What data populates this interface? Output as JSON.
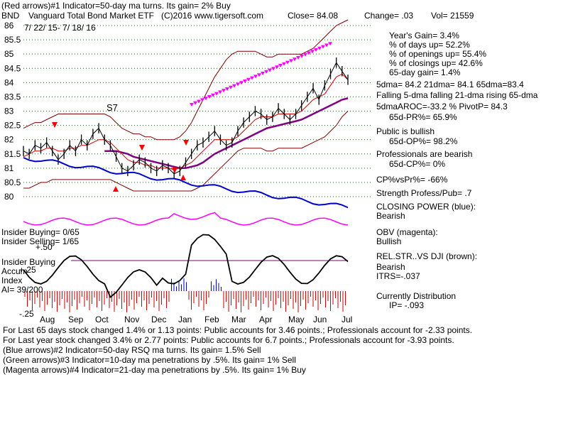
{
  "header": {
    "line1": "(Red arrows)#1 Indicator=50-day ma turns. Its gain= 2% Buy",
    "symbol": "BND",
    "fund": "Vanguard Total Bond Market ETF",
    "copyright": "(C)2016 www.tigersoft.com",
    "close": "Close=  84.08",
    "change": "Change= .03",
    "volume": "Vol= 21559",
    "date_range": "7/ 22/ 15- 7/ 18/ 16"
  },
  "stats": {
    "years_gain": "Year's Gain= 3.4%",
    "pct_days_up": "% of days up= 52.2%",
    "pct_openings_up": "% of openings up= 55.4%",
    "pct_closings_up": "% of closings up= 42.6%",
    "gain_65d": "65-day gain= 1.4%",
    "dma": "5dma= 84.2 21dma= 84.1 65dma=83.4",
    "dma_trend": "Falling 5-dma falling 21-dma rising 65-dma",
    "aroc": "5dmaAROC=-33.2 %  PivotP= 84.3",
    "pr65": "65d-PR%= 65.9%",
    "public": "Public is bullish",
    "op65": "65d-OP%= 98.2%",
    "pros": "Professionals are bearish",
    "cp65": "65d-CP%= 0%",
    "cp_vs_pr": "CP%vsPr%= -66%",
    "strength": "Strength Profess/Pub= .7",
    "closing_power": "CLOSING POWER (blue):",
    "closing_power_val": "Bearish",
    "obv": "OBV (magenta):",
    "obv_val": "Bullish",
    "relstr": "REL.STR..VS DJI (brown):",
    "relstr_val": "Bearish",
    "itrs": "ITRS=-.037",
    "distribution": "Currently Distribution",
    "ip": "IP= -.093"
  },
  "insider": {
    "buying": "Insider Buying= 0/65",
    "selling": "Insider Selling= 1/65",
    "index1": "Insider Buying",
    "index2": "Accum",
    "index3": "Index",
    "ai": "AI= 39/200"
  },
  "footer": {
    "line1": "For Last 65 days stock changed  1.4% or  1.13 points:  Public accounts for  3.46 points.;  Professionals account for -2.33 points.",
    "line2": "For Last year stock changed  3.4% or  2.77 points:  Public accounts for  6.7 points.;  Professionals account for -3.93 points.",
    "line3": "(Blue arrows)#2 Indicator=50-day RSQ ma turns. Its gain= 1.5% Sell",
    "line4": "(Green arrows)#3 Indicator=10-day ma penetrations by .5%. Its gain= 1% Sell",
    "line5": "(Magenta arrows)#4 Indicator=21-day ma penetrations by .5%. Its gain= 1% Buy"
  },
  "colors": {
    "price": "#000000",
    "ma21": "#cc0000",
    "ma65": "#800080",
    "band": "#800000",
    "closing_power": "#0000cc",
    "obv": "#ff00ff",
    "accum_red": "#cc0000",
    "accum_blue": "#0000cc",
    "grid": "#008000"
  },
  "chart_data": {
    "type": "line",
    "price_axis": {
      "ticks": [
        "86",
        "85.5",
        "85",
        "84.5",
        "84",
        "83.5",
        "83",
        "82.5",
        "82",
        "81.5",
        "81",
        "80.5",
        "80"
      ],
      "ylim": [
        80,
        86
      ]
    },
    "indicator_axis": {
      "ticks": [
        "+.50",
        "+.25",
        "-.25"
      ]
    },
    "x_ticks": [
      "Aug",
      "Sep",
      "Oct",
      "Nov",
      "Dec",
      "Jan",
      "Feb",
      "Mar",
      "Apr",
      "May",
      "Jun",
      "Jul"
    ],
    "annotation": "S7",
    "series": [
      {
        "name": "CLOSING POWER (blue)"
      },
      {
        "name": "OBV (magenta)"
      },
      {
        "name": "REL.STR..VS DJI (brown)"
      }
    ],
    "price_close": [
      81.6,
      81.5,
      81.8,
      81.7,
      81.9,
      81.6,
      81.3,
      81.5,
      81.8,
      81.6,
      82.0,
      81.8,
      82.2,
      82.4,
      82.0,
      81.8,
      81.4,
      81.0,
      80.9,
      81.1,
      81.3,
      81.2,
      81.0,
      80.9,
      81.1,
      81.0,
      80.8,
      80.9,
      81.2,
      81.5,
      81.8,
      81.9,
      82.1,
      82.3,
      82.0,
      81.8,
      81.9,
      82.3,
      82.6,
      82.8,
      83.0,
      82.9,
      82.7,
      82.8,
      83.1,
      82.9,
      82.7,
      82.9,
      83.2,
      83.5,
      83.8,
      83.4,
      83.9,
      84.3,
      84.7,
      84.4,
      84.1
    ],
    "ma21": [
      81.4,
      81.5,
      81.6,
      81.6,
      81.7,
      81.7,
      81.6,
      81.6,
      81.7,
      81.7,
      81.8,
      81.8,
      81.9,
      82.0,
      82.0,
      81.9,
      81.7,
      81.5,
      81.3,
      81.2,
      81.2,
      81.1,
      81.1,
      81.0,
      81.0,
      81.0,
      80.95,
      81.0,
      81.1,
      81.2,
      81.4,
      81.6,
      81.8,
      82.0,
      82.0,
      82.0,
      82.0,
      82.1,
      82.3,
      82.5,
      82.7,
      82.8,
      82.8,
      82.8,
      82.9,
      82.9,
      82.9,
      82.9,
      83.0,
      83.2,
      83.4,
      83.5,
      83.6,
      83.9,
      84.2,
      84.3,
      84.1
    ],
    "ma65": [
      null,
      null,
      null,
      null,
      null,
      null,
      null,
      null,
      null,
      null,
      null,
      null,
      null,
      null,
      81.6,
      81.6,
      81.6,
      81.55,
      81.5,
      81.4,
      81.35,
      81.3,
      81.25,
      81.2,
      81.15,
      81.1,
      81.05,
      81.0,
      81.0,
      81.05,
      81.1,
      81.2,
      81.35,
      81.5,
      81.6,
      81.7,
      81.8,
      81.9,
      82.0,
      82.1,
      82.2,
      82.3,
      82.4,
      82.45,
      82.5,
      82.55,
      82.6,
      82.65,
      82.7,
      82.8,
      82.9,
      83.0,
      83.1,
      83.2,
      83.3,
      83.4,
      83.45
    ],
    "upper_band": [
      82.4,
      82.5,
      82.6,
      82.6,
      82.7,
      82.8,
      82.9,
      82.9,
      82.9,
      82.9,
      82.9,
      82.9,
      82.9,
      82.9,
      82.9,
      82.8,
      82.6,
      82.4,
      82.3,
      82.2,
      82.2,
      82.1,
      82.1,
      82.0,
      82.0,
      82.0,
      82.0,
      82.1,
      82.3,
      82.6,
      83.0,
      83.4,
      83.8,
      84.2,
      84.5,
      84.8,
      85.0,
      85.1,
      85.1,
      85.1,
      85.1,
      85.0,
      84.9,
      84.9,
      85.0,
      85.0,
      85.0,
      85.0,
      85.0,
      85.1,
      85.2,
      85.4,
      85.6,
      85.8,
      86.0,
      86.1,
      86.2
    ],
    "lower_band": [
      80.3,
      80.3,
      80.4,
      80.5,
      80.5,
      80.6,
      80.6,
      80.6,
      80.6,
      80.6,
      80.6,
      80.6,
      80.6,
      80.6,
      80.6,
      80.6,
      80.5,
      80.4,
      80.3,
      80.2,
      80.2,
      80.2,
      80.2,
      80.2,
      80.2,
      80.2,
      80.2,
      80.2,
      80.2,
      80.2,
      80.3,
      80.4,
      80.6,
      80.8,
      81.0,
      81.2,
      81.4,
      81.6,
      81.7,
      81.7,
      81.7,
      81.7,
      81.6,
      81.6,
      81.7,
      81.7,
      81.7,
      81.7,
      81.7,
      81.8,
      81.9,
      82.0,
      82.1,
      82.3,
      82.5,
      82.8,
      83.0
    ]
  }
}
